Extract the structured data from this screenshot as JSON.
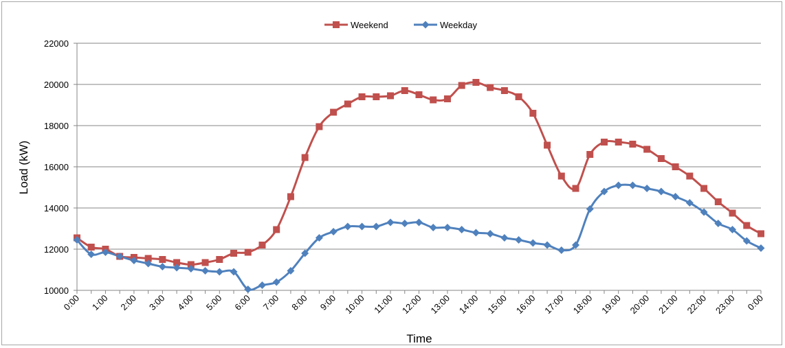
{
  "chart_data": {
    "type": "line",
    "title": "",
    "xlabel": "Time",
    "ylabel": "Load (kW)",
    "ylim": [
      10000,
      22000
    ],
    "yticks": [
      "10000",
      "12000",
      "14000",
      "16000",
      "18000",
      "20000",
      "22000"
    ],
    "grid": "horizontal",
    "legend_position": "top",
    "x_tick_labels": [
      "0:00",
      "1:00",
      "2:00",
      "3:00",
      "4:00",
      "5:00",
      "6:00",
      "7:00",
      "8:00",
      "9:00",
      "10:00",
      "11:00",
      "12:00",
      "13:00",
      "14:00",
      "15:00",
      "16:00",
      "17:00",
      "18:00",
      "19:00",
      "20:00",
      "21:00",
      "22:00",
      "23:00",
      "0:00"
    ],
    "x_hours": [
      0,
      0.5,
      1,
      1.5,
      2,
      2.5,
      3,
      3.5,
      4,
      4.5,
      5,
      5.5,
      6,
      6.5,
      7,
      7.5,
      8,
      8.5,
      9,
      9.5,
      10,
      10.5,
      11,
      11.5,
      12,
      12.5,
      13,
      13.5,
      14,
      14.5,
      15,
      15.5,
      16,
      16.5,
      17,
      17.5,
      18,
      18.5,
      19,
      19.5,
      20,
      20.5,
      21,
      21.5,
      22,
      22.5,
      23,
      23.5,
      24
    ],
    "series": [
      {
        "name": "Weekend",
        "color": "#c0504d",
        "marker": "square",
        "values": [
          12550,
          12100,
          12000,
          11650,
          11600,
          11550,
          11500,
          11350,
          11250,
          11350,
          11500,
          11800,
          11850,
          12200,
          12950,
          14550,
          16450,
          17950,
          18650,
          19050,
          19400,
          19400,
          19450,
          19700,
          19500,
          19250,
          19300,
          19950,
          20100,
          19850,
          19700,
          19400,
          18600,
          17050,
          15550,
          14950,
          16600,
          17200,
          17200,
          17100,
          16850,
          16400,
          16000,
          15550,
          14950,
          14300,
          13750,
          13150,
          12750
        ]
      },
      {
        "name": "Weekday",
        "color": "#4f81bd",
        "marker": "diamond",
        "values": [
          12450,
          11750,
          11850,
          11650,
          11450,
          11300,
          11150,
          11100,
          11050,
          10950,
          10900,
          10900,
          10050,
          10250,
          10400,
          10950,
          11800,
          12550,
          12850,
          13100,
          13100,
          13100,
          13300,
          13250,
          13300,
          13050,
          13050,
          12950,
          12800,
          12750,
          12550,
          12450,
          12300,
          12200,
          11950,
          12200,
          13950,
          14800,
          15100,
          15100,
          14950,
          14800,
          14550,
          14250,
          13800,
          13250,
          12950,
          12400,
          12050
        ]
      }
    ]
  }
}
